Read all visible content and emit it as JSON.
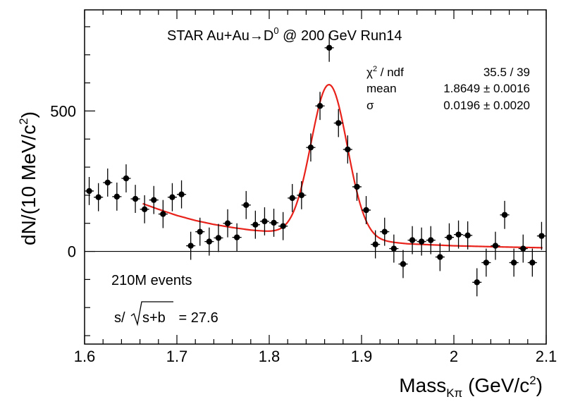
{
  "chart_data": {
    "type": "scatter",
    "title": "STAR Au+Au→D⁰ @ 200 GeV Run14",
    "title_parts": {
      "prefix": "STAR Au+Au",
      "arrow": "→",
      "particle": "D",
      "particle_sup": "0",
      "suffix": "@ 200 GeV Run14"
    },
    "xlabel": "Mass",
    "xlabel_sub": "Kπ",
    "xlabel_unit_prefix": "(GeV/c",
    "xlabel_unit_sup": "2",
    "xlabel_unit_suffix": ")",
    "ylabel": "dN/(10 MeV/c",
    "ylabel_sup": "2",
    "ylabel_suffix": ")",
    "xlim": [
      1.6,
      2.1
    ],
    "ylim": [
      -330,
      860
    ],
    "x_ticks": [
      "1.6",
      "1.7",
      "1.8",
      "1.9",
      "2",
      "2.1"
    ],
    "y_ticks": [
      "0",
      "500"
    ],
    "grid": false,
    "zero_line": true,
    "series": [
      {
        "type": "points_with_error_bars",
        "color": "#000000",
        "x_halfwidth": 0.005,
        "points": [
          {
            "x": 1.605,
            "y": 215,
            "err": 50
          },
          {
            "x": 1.615,
            "y": 193,
            "err": 50
          },
          {
            "x": 1.625,
            "y": 245,
            "err": 50
          },
          {
            "x": 1.635,
            "y": 195,
            "err": 50
          },
          {
            "x": 1.645,
            "y": 260,
            "err": 50
          },
          {
            "x": 1.655,
            "y": 187,
            "err": 50
          },
          {
            "x": 1.665,
            "y": 150,
            "err": 50
          },
          {
            "x": 1.675,
            "y": 183,
            "err": 50
          },
          {
            "x": 1.685,
            "y": 133,
            "err": 50
          },
          {
            "x": 1.695,
            "y": 193,
            "err": 50
          },
          {
            "x": 1.705,
            "y": 203,
            "err": 50
          },
          {
            "x": 1.715,
            "y": 20,
            "err": 50
          },
          {
            "x": 1.725,
            "y": 70,
            "err": 50
          },
          {
            "x": 1.735,
            "y": 35,
            "err": 50
          },
          {
            "x": 1.745,
            "y": 48,
            "err": 50
          },
          {
            "x": 1.755,
            "y": 100,
            "err": 50
          },
          {
            "x": 1.765,
            "y": 50,
            "err": 50
          },
          {
            "x": 1.775,
            "y": 165,
            "err": 50
          },
          {
            "x": 1.785,
            "y": 95,
            "err": 50
          },
          {
            "x": 1.795,
            "y": 107,
            "err": 50
          },
          {
            "x": 1.805,
            "y": 102,
            "err": 50
          },
          {
            "x": 1.815,
            "y": 90,
            "err": 50
          },
          {
            "x": 1.825,
            "y": 190,
            "err": 50
          },
          {
            "x": 1.835,
            "y": 200,
            "err": 50
          },
          {
            "x": 1.845,
            "y": 370,
            "err": 50
          },
          {
            "x": 1.855,
            "y": 518,
            "err": 50
          },
          {
            "x": 1.865,
            "y": 725,
            "err": 50
          },
          {
            "x": 1.875,
            "y": 457,
            "err": 50
          },
          {
            "x": 1.885,
            "y": 363,
            "err": 50
          },
          {
            "x": 1.895,
            "y": 230,
            "err": 50
          },
          {
            "x": 1.905,
            "y": 147,
            "err": 50
          },
          {
            "x": 1.915,
            "y": 25,
            "err": 50
          },
          {
            "x": 1.925,
            "y": 70,
            "err": 50
          },
          {
            "x": 1.935,
            "y": 10,
            "err": 50
          },
          {
            "x": 1.945,
            "y": -45,
            "err": 50
          },
          {
            "x": 1.955,
            "y": 40,
            "err": 50
          },
          {
            "x": 1.965,
            "y": 35,
            "err": 50
          },
          {
            "x": 1.975,
            "y": 40,
            "err": 50
          },
          {
            "x": 1.985,
            "y": -20,
            "err": 50
          },
          {
            "x": 1.995,
            "y": 50,
            "err": 50
          },
          {
            "x": 2.005,
            "y": 60,
            "err": 50
          },
          {
            "x": 2.015,
            "y": 57,
            "err": 50
          },
          {
            "x": 2.025,
            "y": -110,
            "err": 50
          },
          {
            "x": 2.035,
            "y": -40,
            "err": 50
          },
          {
            "x": 2.045,
            "y": 20,
            "err": 50
          },
          {
            "x": 2.055,
            "y": 130,
            "err": 50
          },
          {
            "x": 2.065,
            "y": -40,
            "err": 50
          },
          {
            "x": 2.075,
            "y": 10,
            "err": 50
          },
          {
            "x": 2.085,
            "y": -40,
            "err": 50
          },
          {
            "x": 2.095,
            "y": 55,
            "err": 50
          }
        ]
      },
      {
        "type": "fit_line",
        "color": "#e8221b",
        "x_start": 1.663,
        "x_end": 2.096,
        "peak_mean": 1.8649,
        "peak_sigma": 0.0196,
        "peak_amplitude": 540,
        "background_points": [
          {
            "x": 1.663,
            "y": 170
          },
          {
            "x": 1.68,
            "y": 150
          },
          {
            "x": 1.7,
            "y": 128
          },
          {
            "x": 1.72,
            "y": 110
          },
          {
            "x": 1.74,
            "y": 96
          },
          {
            "x": 1.76,
            "y": 85
          },
          {
            "x": 1.78,
            "y": 76
          },
          {
            "x": 1.8,
            "y": 70
          },
          {
            "x": 1.82,
            "y": 65
          },
          {
            "x": 1.84,
            "y": 60
          },
          {
            "x": 1.86,
            "y": 55
          },
          {
            "x": 1.88,
            "y": 50
          },
          {
            "x": 1.9,
            "y": 44
          },
          {
            "x": 1.92,
            "y": 36
          },
          {
            "x": 1.95,
            "y": 27
          },
          {
            "x": 2.0,
            "y": 20
          },
          {
            "x": 2.05,
            "y": 16
          },
          {
            "x": 2.096,
            "y": 13
          }
        ]
      }
    ],
    "stats_box": [
      {
        "label": "χ",
        "label_sup": "2",
        "label_suffix": " / ndf",
        "value": "35.5 / 39"
      },
      {
        "label": "mean",
        "label_sup": "",
        "label_suffix": "",
        "value": "1.8649 ± 0.0016"
      },
      {
        "label": "σ",
        "label_sup": "",
        "label_suffix": "",
        "value": "0.0196 ± 0.0020"
      }
    ],
    "annotations": {
      "events": "210M events",
      "significance_prefix": "s/",
      "significance_radicand": "s+b",
      "significance_value": " = 27.6"
    }
  }
}
